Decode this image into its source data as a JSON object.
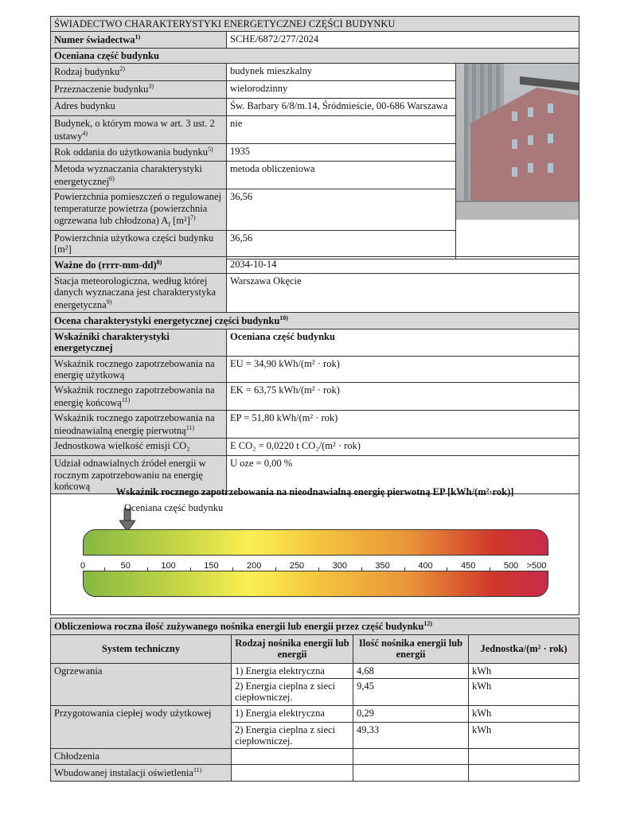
{
  "title": "ŚWIADECTWO CHARAKTERYSTYKI ENERGETYCZNEJ CZĘŚCI BUDYNKU",
  "cert": {
    "label": "Numer świadectwa",
    "sup": "1)",
    "value": "SCHE/6872/277/2024"
  },
  "assessed": {
    "header": "Oceniana część budynku",
    "rows": [
      {
        "label": "Rodzaj budynku",
        "sup": "2)",
        "value": "budynek mieszkalny"
      },
      {
        "label": "Przeznaczenie budynku",
        "sup": "3)",
        "value": "wielorodzinny"
      },
      {
        "label": "Adres budynku",
        "sup": "",
        "value": "Św. Barbary 6/8/m.14, Śródmieście, 00-686 Warszawa"
      },
      {
        "label": "Budynek, o którym mowa w art. 3 ust. 2 ustawy",
        "sup": "4)",
        "value": "nie"
      },
      {
        "label": "Rok oddania do użytkowania budynku",
        "sup": "5)",
        "value": "1935"
      },
      {
        "label": "Metoda wyznaczania charakterystyki energetycznej",
        "sup": "6)",
        "value": "metoda obliczeniowa"
      },
      {
        "label": "Powierzchnia pomieszczeń o regulowanej temperaturze powietrza (powierzchnia ogrzewana lub chłodzona) A",
        "sub": "f",
        "unit": " [m²]",
        "sup": "7)",
        "value": "36,56"
      },
      {
        "label": "Powierzchnia użytkowa części budynku [m²]",
        "sup": "",
        "value": "36,56"
      }
    ]
  },
  "valid": {
    "label": "Ważne do (rrrr-mm-dd)",
    "sup": "8)",
    "value": "2034-10-14"
  },
  "station": {
    "label": "Stacja meteorologiczna, według której danych wyznaczana jest charakterystyka energetyczna",
    "sup": "9)",
    "value": "Warszawa Okęcie"
  },
  "evaluation": {
    "header": "Ocena charakterystyki energetycznej części budynku",
    "sup": "10)",
    "col1": "Wskaźniki charakterystyki energetycznej",
    "col2": "Oceniana część budynku",
    "rows": [
      {
        "label": "Wskaźnik rocznego zapotrzebowania na energię użytkową",
        "sup": "",
        "value": "EU = 34,90 kWh/(m² · rok)"
      },
      {
        "label": "Wskaźnik rocznego zapotrzebowania na energię końcową",
        "sup": "11)",
        "value": "EK = 63,75 kWh/(m² · rok)"
      },
      {
        "label": "Wskaźnik rocznego zapotrzebowania na nieodnawialną energię pierwotną",
        "sup": "11)",
        "value": "EP = 51,80 kWh/(m² · rok)"
      },
      {
        "label": "Jednostkowa wielkość emisji CO₂",
        "sup": "",
        "value": "E CO₂ = 0,0220 t CO₂/(m² · rok)"
      },
      {
        "label": "Udział odnawialnych źródeł energii w rocznym zapotrzebowaniu na energię końcową",
        "sup": "",
        "value": "U oze = 0,00 %"
      }
    ]
  },
  "scale": {
    "title": "Wskaźnik rocznego zapotrzebowania na nieodnawialną energię pierwotną EP [kWh/(m²·rok)]",
    "marker_label": "Oceniana część budynku",
    "marker_value": 51.8,
    "ticks": [
      "0",
      "50",
      "100",
      "150",
      "200",
      "250",
      "300",
      "350",
      "400",
      "450",
      "500",
      ">500"
    ],
    "colors": [
      "#86b843",
      "#fbef52",
      "#e8953a",
      "#c92a4a"
    ]
  },
  "carriers": {
    "header": "Obliczeniowa roczna ilość zużywanego nośnika energii lub energii przez część budynku",
    "sup": "12)",
    "cols": [
      "System techniczny",
      "Rodzaj nośnika energii lub energii",
      "Ilość nośnika energii lub energii",
      "Jednostka/(m² · rok)"
    ],
    "rows": [
      {
        "system": "Ogrzewania",
        "carrier": "1) Energia elektryczna",
        "amount": "4,68",
        "unit": "kWh"
      },
      {
        "system": "",
        "carrier": "2) Energia cieplna z sieci ciepłowniczej.",
        "amount": "9,45",
        "unit": "kWh"
      },
      {
        "system": "Przygotowania ciepłej wody użytkowej",
        "carrier": "1) Energia elektryczna",
        "amount": "0,29",
        "unit": "kWh"
      },
      {
        "system": "",
        "carrier": "2) Energia cieplna z sieci ciepłowniczej.",
        "amount": "49,33",
        "unit": "kWh"
      },
      {
        "system": "Chłodzenia",
        "carrier": "",
        "amount": "",
        "unit": ""
      },
      {
        "system": "Wbudowanej instalacji oświetlenia",
        "sup": "11)",
        "carrier": "",
        "amount": "",
        "unit": ""
      }
    ]
  }
}
